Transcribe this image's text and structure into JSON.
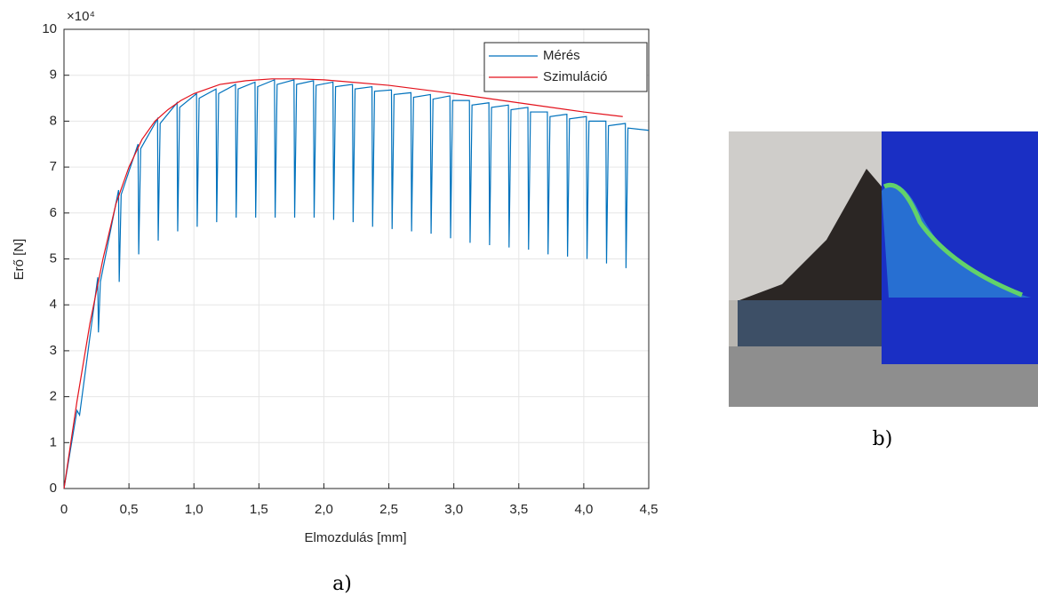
{
  "chart_data": {
    "type": "line",
    "x_label": "Elmozdulás [mm]",
    "y_label": "Erő [N]",
    "y_exponent": "×10⁴",
    "xlim": [
      0,
      4.5
    ],
    "ylim": [
      0,
      10
    ],
    "xticks": [
      0,
      {
        "value": 0.5,
        "label": "0,5"
      },
      {
        "value": 1,
        "label": "1,0"
      },
      {
        "value": 1.5,
        "label": "1,5"
      },
      {
        "value": 2,
        "label": "2,0"
      },
      {
        "value": 2.5,
        "label": "2,5"
      },
      {
        "value": 3,
        "label": "3,0"
      },
      {
        "value": 3.5,
        "label": "3,5"
      },
      {
        "value": 4,
        "label": "4,0"
      },
      {
        "value": 4.5,
        "label": "4,5"
      }
    ],
    "yticks": [
      0,
      1,
      2,
      3,
      4,
      5,
      6,
      7,
      8,
      9,
      10
    ],
    "grid": true,
    "legend": "upper right",
    "series": [
      {
        "name": "Mérés",
        "color": "#0072bd",
        "x": [
          0,
          0.1,
          0.12,
          0.26,
          0.265,
          0.28,
          0.42,
          0.425,
          0.44,
          0.57,
          0.575,
          0.59,
          0.72,
          0.725,
          0.74,
          0.87,
          0.875,
          0.89,
          1.02,
          1.025,
          1.04,
          1.17,
          1.175,
          1.19,
          1.32,
          1.325,
          1.34,
          1.47,
          1.475,
          1.49,
          1.62,
          1.625,
          1.64,
          1.77,
          1.775,
          1.79,
          1.92,
          1.925,
          1.94,
          2.07,
          2.075,
          2.09,
          2.22,
          2.225,
          2.24,
          2.37,
          2.375,
          2.39,
          2.52,
          2.525,
          2.54,
          2.67,
          2.675,
          2.69,
          2.82,
          2.825,
          2.84,
          2.97,
          2.975,
          2.99,
          3.12,
          3.125,
          3.14,
          3.27,
          3.275,
          3.29,
          3.42,
          3.425,
          3.44,
          3.57,
          3.575,
          3.59,
          3.72,
          3.725,
          3.74,
          3.87,
          3.875,
          3.89,
          4.02,
          4.025,
          4.04,
          4.17,
          4.175,
          4.19,
          4.32,
          4.325,
          4.34,
          4.5
        ],
        "values": [
          0,
          1.7,
          1.6,
          4.6,
          3.4,
          4.5,
          6.5,
          4.5,
          6.4,
          7.5,
          5.1,
          7.4,
          8.05,
          5.4,
          7.95,
          8.4,
          5.6,
          8.3,
          8.6,
          5.7,
          8.5,
          8.7,
          5.8,
          8.6,
          8.8,
          5.9,
          8.7,
          8.85,
          5.9,
          8.75,
          8.9,
          5.9,
          8.8,
          8.9,
          5.9,
          8.8,
          8.88,
          5.9,
          8.78,
          8.85,
          5.85,
          8.75,
          8.8,
          5.8,
          8.7,
          8.75,
          5.7,
          8.65,
          8.68,
          5.65,
          8.58,
          8.62,
          5.6,
          8.52,
          8.58,
          5.55,
          8.48,
          8.55,
          5.45,
          8.45,
          8.45,
          5.35,
          8.35,
          8.4,
          5.3,
          8.3,
          8.35,
          5.25,
          8.25,
          8.3,
          5.2,
          8.2,
          8.2,
          5.1,
          8.1,
          8.15,
          5.05,
          8.05,
          8.1,
          5.0,
          8.0,
          8.0,
          4.9,
          7.9,
          7.95,
          4.8,
          7.85,
          7.8
        ]
      },
      {
        "name": "Szimuláció",
        "color": "#e3111b",
        "x": [
          0,
          0.1,
          0.2,
          0.3,
          0.4,
          0.5,
          0.6,
          0.7,
          0.8,
          0.9,
          1.0,
          1.2,
          1.4,
          1.6,
          1.8,
          2.0,
          2.5,
          3.0,
          3.5,
          4.0,
          4.3
        ],
        "values": [
          0,
          1.9,
          3.6,
          5.0,
          6.2,
          7.0,
          7.6,
          8.0,
          8.25,
          8.45,
          8.6,
          8.8,
          8.88,
          8.92,
          8.92,
          8.9,
          8.78,
          8.6,
          8.4,
          8.2,
          8.1
        ]
      }
    ]
  },
  "captions": {
    "a": "a)",
    "b": "b)"
  }
}
